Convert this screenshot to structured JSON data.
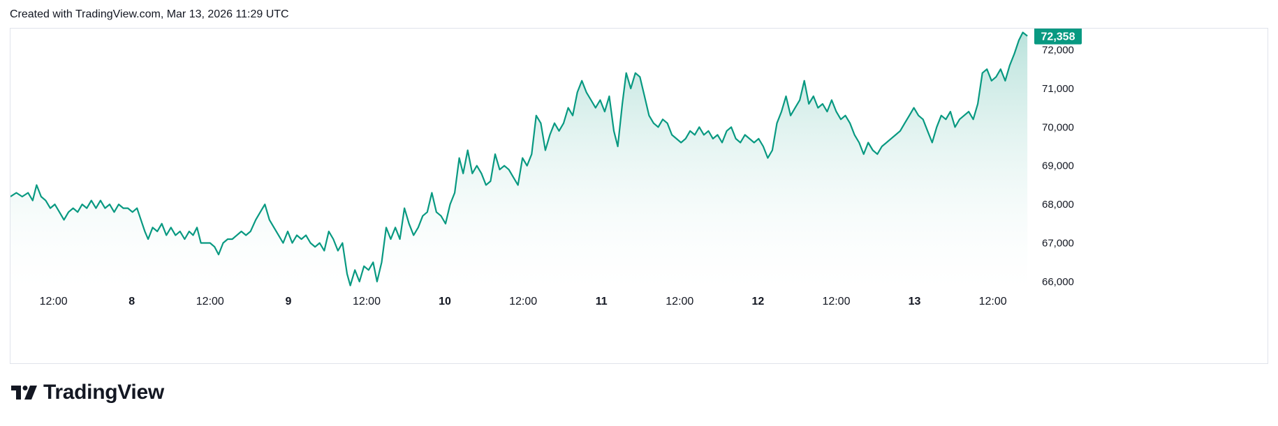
{
  "header": {
    "caption": "Created with TradingView.com, Mar 13, 2026 11:29 UTC"
  },
  "brand": {
    "name": "TradingView",
    "icon": "tradingview-logo-icon"
  },
  "colors": {
    "line": "#089981",
    "area_top": "#089981",
    "area_bottom": "#ffffff",
    "grid": "#f0f3fa",
    "axis_text": "#131722",
    "price_tag_bg": "#089981",
    "price_tag_text": "#ffffff"
  },
  "chart_data": {
    "type": "area",
    "title": "",
    "xlabel": "",
    "ylabel": "",
    "x_unit": "hours since Mar 7, 00:00 UTC",
    "xlim": [
      5.4,
      161.5
    ],
    "ylim": [
      65800,
      72550
    ],
    "yticks": [
      66000,
      67000,
      68000,
      69000,
      70000,
      71000,
      72000
    ],
    "ytick_labels": [
      "66,000",
      "67,000",
      "68,000",
      "69,000",
      "70,000",
      "71,000",
      "72,000"
    ],
    "xticks": [
      12,
      24,
      36,
      48,
      60,
      72,
      84,
      96,
      108,
      120,
      132,
      144,
      156
    ],
    "xtick_labels": [
      "12:00",
      "8",
      "12:00",
      "9",
      "12:00",
      "10",
      "12:00",
      "11",
      "12:00",
      "12",
      "12:00",
      "13",
      "12:00"
    ],
    "last_value": 72358,
    "last_value_label": "72,358",
    "grid": false,
    "series": [
      {
        "values": [
          [
            5.4,
            68200
          ],
          [
            6.3,
            68300
          ],
          [
            7.2,
            68200
          ],
          [
            8.1,
            68300
          ],
          [
            8.8,
            68100
          ],
          [
            9.4,
            68500
          ],
          [
            10.1,
            68200
          ],
          [
            10.8,
            68100
          ],
          [
            11.5,
            67900
          ],
          [
            12.2,
            68000
          ],
          [
            12.9,
            67800
          ],
          [
            13.6,
            67600
          ],
          [
            14.3,
            67800
          ],
          [
            15.0,
            67900
          ],
          [
            15.7,
            67800
          ],
          [
            16.4,
            68000
          ],
          [
            17.1,
            67900
          ],
          [
            17.8,
            68100
          ],
          [
            18.5,
            67900
          ],
          [
            19.2,
            68100
          ],
          [
            19.9,
            67900
          ],
          [
            20.6,
            68000
          ],
          [
            21.3,
            67800
          ],
          [
            22.0,
            68000
          ],
          [
            22.7,
            67900
          ],
          [
            23.4,
            67900
          ],
          [
            24.1,
            67800
          ],
          [
            24.8,
            67900
          ],
          [
            25.4,
            67600
          ],
          [
            26.0,
            67300
          ],
          [
            26.5,
            67100
          ],
          [
            27.2,
            67400
          ],
          [
            27.9,
            67300
          ],
          [
            28.6,
            67500
          ],
          [
            29.3,
            67200
          ],
          [
            30.0,
            67400
          ],
          [
            30.7,
            67200
          ],
          [
            31.4,
            67300
          ],
          [
            32.1,
            67100
          ],
          [
            32.8,
            67300
          ],
          [
            33.4,
            67200
          ],
          [
            34.0,
            67400
          ],
          [
            34.6,
            67000
          ],
          [
            35.3,
            67000
          ],
          [
            36.0,
            67000
          ],
          [
            36.7,
            66900
          ],
          [
            37.3,
            66700
          ],
          [
            38.0,
            67000
          ],
          [
            38.7,
            67100
          ],
          [
            39.4,
            67100
          ],
          [
            40.1,
            67200
          ],
          [
            40.8,
            67300
          ],
          [
            41.5,
            67200
          ],
          [
            42.2,
            67300
          ],
          [
            43.0,
            67600
          ],
          [
            43.7,
            67800
          ],
          [
            44.4,
            68000
          ],
          [
            45.1,
            67600
          ],
          [
            45.8,
            67400
          ],
          [
            46.5,
            67200
          ],
          [
            47.2,
            67000
          ],
          [
            47.9,
            67300
          ],
          [
            48.6,
            67000
          ],
          [
            49.3,
            67200
          ],
          [
            50.0,
            67100
          ],
          [
            50.7,
            67200
          ],
          [
            51.4,
            67000
          ],
          [
            52.1,
            66900
          ],
          [
            52.8,
            67000
          ],
          [
            53.5,
            66800
          ],
          [
            54.2,
            67300
          ],
          [
            54.9,
            67100
          ],
          [
            55.6,
            66800
          ],
          [
            56.3,
            67000
          ],
          [
            57.0,
            66200
          ],
          [
            57.5,
            65900
          ],
          [
            58.2,
            66300
          ],
          [
            58.9,
            66000
          ],
          [
            59.6,
            66400
          ],
          [
            60.3,
            66300
          ],
          [
            61.0,
            66500
          ],
          [
            61.6,
            66000
          ],
          [
            62.3,
            66500
          ],
          [
            63.0,
            67400
          ],
          [
            63.7,
            67100
          ],
          [
            64.4,
            67400
          ],
          [
            65.1,
            67100
          ],
          [
            65.8,
            67900
          ],
          [
            66.5,
            67500
          ],
          [
            67.2,
            67200
          ],
          [
            67.9,
            67400
          ],
          [
            68.6,
            67700
          ],
          [
            69.3,
            67800
          ],
          [
            70.0,
            68300
          ],
          [
            70.7,
            67800
          ],
          [
            71.4,
            67700
          ],
          [
            72.1,
            67500
          ],
          [
            72.8,
            68000
          ],
          [
            73.5,
            68300
          ],
          [
            74.2,
            69200
          ],
          [
            74.8,
            68800
          ],
          [
            75.5,
            69400
          ],
          [
            76.2,
            68800
          ],
          [
            76.9,
            69000
          ],
          [
            77.6,
            68800
          ],
          [
            78.3,
            68500
          ],
          [
            79.0,
            68600
          ],
          [
            79.7,
            69300
          ],
          [
            80.4,
            68900
          ],
          [
            81.1,
            69000
          ],
          [
            81.8,
            68900
          ],
          [
            82.5,
            68700
          ],
          [
            83.2,
            68500
          ],
          [
            83.9,
            69200
          ],
          [
            84.6,
            69000
          ],
          [
            85.3,
            69300
          ],
          [
            86.0,
            70300
          ],
          [
            86.7,
            70100
          ],
          [
            87.4,
            69400
          ],
          [
            88.1,
            69800
          ],
          [
            88.8,
            70100
          ],
          [
            89.5,
            69900
          ],
          [
            90.2,
            70100
          ],
          [
            90.9,
            70500
          ],
          [
            91.6,
            70300
          ],
          [
            92.3,
            70900
          ],
          [
            93.0,
            71200
          ],
          [
            93.7,
            70900
          ],
          [
            94.4,
            70700
          ],
          [
            95.1,
            70500
          ],
          [
            95.8,
            70700
          ],
          [
            96.5,
            70400
          ],
          [
            97.2,
            70800
          ],
          [
            97.9,
            69900
          ],
          [
            98.5,
            69500
          ],
          [
            99.2,
            70600
          ],
          [
            99.8,
            71400
          ],
          [
            100.5,
            71000
          ],
          [
            101.2,
            71400
          ],
          [
            101.9,
            71300
          ],
          [
            102.6,
            70800
          ],
          [
            103.3,
            70300
          ],
          [
            104.0,
            70100
          ],
          [
            104.7,
            70000
          ],
          [
            105.4,
            70200
          ],
          [
            106.1,
            70100
          ],
          [
            106.8,
            69800
          ],
          [
            107.5,
            69700
          ],
          [
            108.2,
            69600
          ],
          [
            108.9,
            69700
          ],
          [
            109.6,
            69900
          ],
          [
            110.3,
            69800
          ],
          [
            111.0,
            70000
          ],
          [
            111.7,
            69800
          ],
          [
            112.4,
            69900
          ],
          [
            113.1,
            69700
          ],
          [
            113.8,
            69800
          ],
          [
            114.5,
            69600
          ],
          [
            115.2,
            69900
          ],
          [
            115.9,
            70000
          ],
          [
            116.6,
            69700
          ],
          [
            117.3,
            69600
          ],
          [
            118.0,
            69800
          ],
          [
            118.7,
            69700
          ],
          [
            119.4,
            69600
          ],
          [
            120.1,
            69700
          ],
          [
            120.8,
            69500
          ],
          [
            121.5,
            69200
          ],
          [
            122.2,
            69400
          ],
          [
            122.9,
            70100
          ],
          [
            123.6,
            70400
          ],
          [
            124.3,
            70800
          ],
          [
            125.0,
            70300
          ],
          [
            125.7,
            70500
          ],
          [
            126.4,
            70700
          ],
          [
            127.1,
            71200
          ],
          [
            127.8,
            70600
          ],
          [
            128.5,
            70800
          ],
          [
            129.2,
            70500
          ],
          [
            129.9,
            70600
          ],
          [
            130.6,
            70400
          ],
          [
            131.3,
            70700
          ],
          [
            132.0,
            70400
          ],
          [
            132.7,
            70200
          ],
          [
            133.4,
            70300
          ],
          [
            134.1,
            70100
          ],
          [
            134.8,
            69800
          ],
          [
            135.5,
            69600
          ],
          [
            136.2,
            69300
          ],
          [
            136.9,
            69600
          ],
          [
            137.6,
            69400
          ],
          [
            138.3,
            69300
          ],
          [
            139.0,
            69500
          ],
          [
            139.7,
            69600
          ],
          [
            140.4,
            69700
          ],
          [
            141.1,
            69800
          ],
          [
            141.8,
            69900
          ],
          [
            142.5,
            70100
          ],
          [
            143.2,
            70300
          ],
          [
            143.9,
            70500
          ],
          [
            144.6,
            70300
          ],
          [
            145.3,
            70200
          ],
          [
            146.0,
            69900
          ],
          [
            146.7,
            69600
          ],
          [
            147.4,
            70000
          ],
          [
            148.1,
            70300
          ],
          [
            148.8,
            70200
          ],
          [
            149.5,
            70400
          ],
          [
            150.2,
            70000
          ],
          [
            150.9,
            70200
          ],
          [
            151.6,
            70300
          ],
          [
            152.3,
            70400
          ],
          [
            153.0,
            70200
          ],
          [
            153.7,
            70600
          ],
          [
            154.4,
            71400
          ],
          [
            155.1,
            71500
          ],
          [
            155.8,
            71200
          ],
          [
            156.5,
            71300
          ],
          [
            157.2,
            71500
          ],
          [
            157.9,
            71200
          ],
          [
            158.6,
            71600
          ],
          [
            159.3,
            71900
          ],
          [
            160.0,
            72250
          ],
          [
            160.6,
            72450
          ],
          [
            161.3,
            72358
          ]
        ]
      }
    ]
  }
}
